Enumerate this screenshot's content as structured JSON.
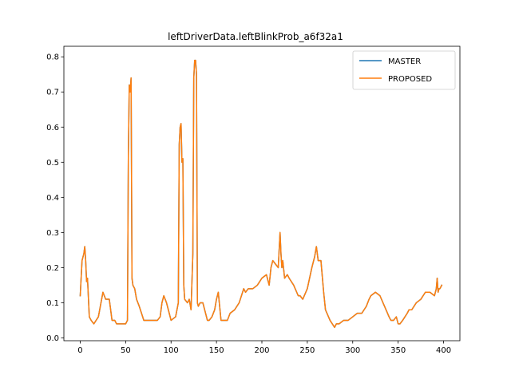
{
  "chart_data": {
    "type": "line",
    "title": "leftDriverData.leftBlinkProb_a6f32a1",
    "xlabel": "",
    "ylabel": "",
    "xlim": [
      -18,
      418
    ],
    "ylim": [
      -0.008,
      0.83
    ],
    "xticks": [
      0,
      50,
      100,
      150,
      200,
      250,
      300,
      350,
      400
    ],
    "yticks": [
      0.0,
      0.1,
      0.2,
      0.3,
      0.4,
      0.5,
      0.6,
      0.7,
      0.8
    ],
    "grid": false,
    "legend": "top-right",
    "series": [
      {
        "name": "MASTER",
        "color": "#1f77b4",
        "x": [
          0,
          2,
          3,
          4,
          5,
          6,
          7,
          8,
          10,
          12,
          15,
          20,
          25,
          28,
          32,
          35,
          38,
          40,
          45,
          50,
          52,
          53,
          54,
          55,
          56,
          57,
          58,
          60,
          62,
          65,
          70,
          72,
          75,
          80,
          85,
          88,
          90,
          92,
          95,
          97,
          100,
          105,
          108,
          109,
          110,
          111,
          112,
          113,
          114,
          115,
          118,
          120,
          122,
          124,
          125,
          126,
          127,
          128,
          129,
          130,
          132,
          135,
          140,
          142,
          145,
          148,
          150,
          152,
          155,
          158,
          160,
          162,
          165,
          170,
          175,
          180,
          182,
          185,
          190,
          195,
          200,
          205,
          208,
          210,
          212,
          215,
          218,
          220,
          221,
          222,
          223,
          225,
          228,
          230,
          235,
          240,
          242,
          245,
          250,
          255,
          258,
          260,
          262,
          265,
          268,
          270,
          275,
          280,
          282,
          285,
          290,
          295,
          300,
          305,
          310,
          315,
          318,
          320,
          325,
          330,
          335,
          340,
          342,
          345,
          348,
          350,
          352,
          355,
          360,
          362,
          365,
          370,
          375,
          380,
          385,
          390,
          392,
          393,
          394,
          395,
          396,
          398
        ],
        "values": [
          0.12,
          0.22,
          0.23,
          0.24,
          0.26,
          0.22,
          0.16,
          0.17,
          0.06,
          0.05,
          0.04,
          0.06,
          0.13,
          0.11,
          0.11,
          0.05,
          0.05,
          0.04,
          0.04,
          0.04,
          0.05,
          0.52,
          0.72,
          0.7,
          0.74,
          0.17,
          0.15,
          0.14,
          0.11,
          0.09,
          0.05,
          0.05,
          0.05,
          0.05,
          0.05,
          0.06,
          0.1,
          0.12,
          0.1,
          0.08,
          0.05,
          0.06,
          0.1,
          0.55,
          0.6,
          0.61,
          0.5,
          0.51,
          0.15,
          0.11,
          0.1,
          0.11,
          0.08,
          0.24,
          0.74,
          0.79,
          0.79,
          0.75,
          0.1,
          0.09,
          0.1,
          0.1,
          0.05,
          0.05,
          0.06,
          0.08,
          0.11,
          0.13,
          0.05,
          0.05,
          0.05,
          0.05,
          0.07,
          0.08,
          0.1,
          0.14,
          0.13,
          0.14,
          0.14,
          0.15,
          0.17,
          0.18,
          0.15,
          0.2,
          0.22,
          0.21,
          0.2,
          0.3,
          0.24,
          0.2,
          0.22,
          0.17,
          0.18,
          0.17,
          0.15,
          0.12,
          0.12,
          0.11,
          0.14,
          0.2,
          0.23,
          0.26,
          0.22,
          0.22,
          0.13,
          0.08,
          0.05,
          0.03,
          0.04,
          0.04,
          0.05,
          0.05,
          0.06,
          0.07,
          0.07,
          0.09,
          0.11,
          0.12,
          0.13,
          0.12,
          0.09,
          0.06,
          0.05,
          0.05,
          0.06,
          0.04,
          0.04,
          0.05,
          0.07,
          0.08,
          0.08,
          0.1,
          0.11,
          0.13,
          0.13,
          0.12,
          0.14,
          0.17,
          0.13,
          0.14,
          0.14,
          0.15
        ]
      },
      {
        "name": "PROPOSED",
        "color": "#ff7f0e",
        "x": [
          0,
          2,
          3,
          4,
          5,
          6,
          7,
          8,
          10,
          12,
          15,
          20,
          25,
          28,
          32,
          35,
          38,
          40,
          45,
          50,
          52,
          53,
          54,
          55,
          56,
          57,
          58,
          60,
          62,
          65,
          70,
          72,
          75,
          80,
          85,
          88,
          90,
          92,
          95,
          97,
          100,
          105,
          108,
          109,
          110,
          111,
          112,
          113,
          114,
          115,
          118,
          120,
          122,
          124,
          125,
          126,
          127,
          128,
          129,
          130,
          132,
          135,
          140,
          142,
          145,
          148,
          150,
          152,
          155,
          158,
          160,
          162,
          165,
          170,
          175,
          180,
          182,
          185,
          190,
          195,
          200,
          205,
          208,
          210,
          212,
          215,
          218,
          220,
          221,
          222,
          223,
          225,
          228,
          230,
          235,
          240,
          242,
          245,
          250,
          255,
          258,
          260,
          262,
          265,
          268,
          270,
          275,
          280,
          282,
          285,
          290,
          295,
          300,
          305,
          310,
          315,
          318,
          320,
          325,
          330,
          335,
          340,
          342,
          345,
          348,
          350,
          352,
          355,
          360,
          362,
          365,
          370,
          375,
          380,
          385,
          390,
          392,
          393,
          394,
          395,
          396,
          398
        ],
        "values": [
          0.12,
          0.22,
          0.23,
          0.24,
          0.26,
          0.22,
          0.16,
          0.17,
          0.06,
          0.05,
          0.04,
          0.06,
          0.13,
          0.11,
          0.11,
          0.05,
          0.05,
          0.04,
          0.04,
          0.04,
          0.05,
          0.52,
          0.72,
          0.7,
          0.74,
          0.17,
          0.15,
          0.14,
          0.11,
          0.09,
          0.05,
          0.05,
          0.05,
          0.05,
          0.05,
          0.06,
          0.1,
          0.12,
          0.1,
          0.08,
          0.05,
          0.06,
          0.1,
          0.55,
          0.6,
          0.61,
          0.5,
          0.51,
          0.15,
          0.11,
          0.1,
          0.11,
          0.08,
          0.24,
          0.74,
          0.79,
          0.79,
          0.75,
          0.1,
          0.09,
          0.1,
          0.1,
          0.05,
          0.05,
          0.06,
          0.08,
          0.11,
          0.13,
          0.05,
          0.05,
          0.05,
          0.05,
          0.07,
          0.08,
          0.1,
          0.14,
          0.13,
          0.14,
          0.14,
          0.15,
          0.17,
          0.18,
          0.15,
          0.2,
          0.22,
          0.21,
          0.2,
          0.3,
          0.24,
          0.2,
          0.22,
          0.17,
          0.18,
          0.17,
          0.15,
          0.12,
          0.12,
          0.11,
          0.14,
          0.2,
          0.23,
          0.26,
          0.22,
          0.22,
          0.13,
          0.08,
          0.05,
          0.03,
          0.04,
          0.04,
          0.05,
          0.05,
          0.06,
          0.07,
          0.07,
          0.09,
          0.11,
          0.12,
          0.13,
          0.12,
          0.09,
          0.06,
          0.05,
          0.05,
          0.06,
          0.04,
          0.04,
          0.05,
          0.07,
          0.08,
          0.08,
          0.1,
          0.11,
          0.13,
          0.13,
          0.12,
          0.14,
          0.17,
          0.13,
          0.14,
          0.14,
          0.15
        ]
      }
    ]
  }
}
